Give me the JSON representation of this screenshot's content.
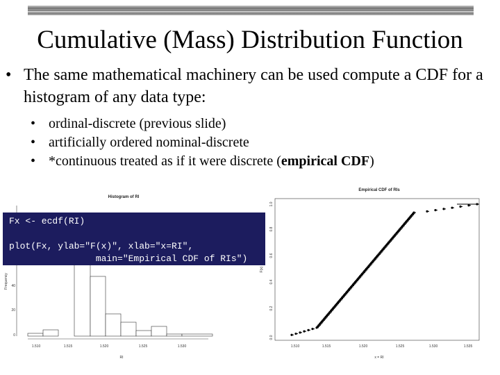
{
  "title": "Cumulative (Mass) Distribution Function",
  "bullet": {
    "dot": "•",
    "text": "The same mathematical machinery can be used compute a CDF for a histogram of any data type:"
  },
  "subbullets": [
    {
      "dot": "•",
      "text": "ordinal-discrete (previous slide)"
    },
    {
      "dot": "•",
      "text": "artificially ordered nominal-discrete"
    },
    {
      "dot": "•",
      "pre": "*continuous treated as if it were discrete (",
      "bold": "empirical CDF",
      "post": ")"
    }
  ],
  "code": {
    "line1": "Fx <- ecdf(RI)",
    "line2": "plot(Fx, ylab=\"F(x)\", xlab=\"x=RI\",",
    "line3": "                main=\"Empirical CDF of RIs\")"
  },
  "histogram": {
    "title": "Histogram of RI",
    "xlabel": "RI",
    "ylabel": "Frequency",
    "x_ticks": [
      "1.510",
      "1.515",
      "1.520",
      "1.525",
      "1.530"
    ],
    "y_ticks": [
      "0",
      "20",
      "40"
    ]
  },
  "ecdf_plot": {
    "title": "Empirical CDF of RIs",
    "xlabel": "x = RI",
    "ylabel": "F(x)",
    "x_ticks": [
      "1.510",
      "1.515",
      "1.520",
      "1.525",
      "1.530",
      "1.535"
    ],
    "y_ticks": [
      "0.0",
      "0.2",
      "0.4",
      "0.6",
      "0.8",
      "1.0"
    ]
  },
  "colors": {
    "code_bg": "#1c1c5e",
    "code_text": "#ffffff"
  }
}
